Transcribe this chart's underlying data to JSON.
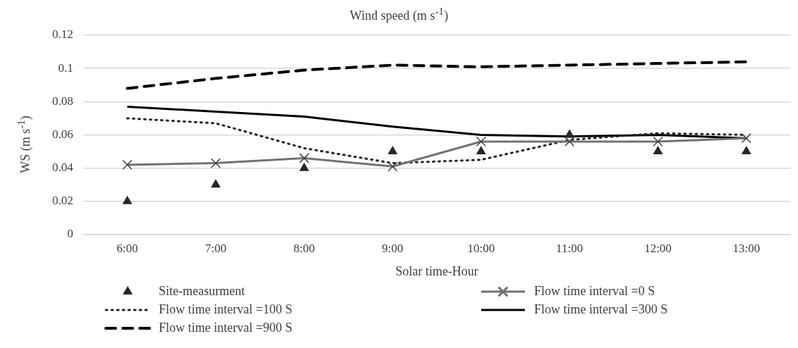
{
  "chart_data": {
    "type": "line",
    "title": "Wind speed (m s$^{-1}$)",
    "xlabel": "Solar time-Hour",
    "ylabel": "WS (m s$^{-1}$)",
    "categories": [
      "6:00",
      "7:00",
      "8:00",
      "9:00",
      "10:00",
      "11:00",
      "12:00",
      "13:00"
    ],
    "ylim": [
      0,
      0.12
    ],
    "yticks": [
      0,
      0.02,
      0.04,
      0.06,
      0.08,
      {
        "value": 0.1,
        "label": "0.1"
      },
      0.12
    ],
    "grid": "y",
    "legend": "bottom",
    "series": [
      {
        "name": "Site-measurment",
        "type": "scatter",
        "marker": "triangle",
        "color": "#262626",
        "values": [
          0.02,
          0.03,
          0.04,
          0.05,
          0.05,
          0.06,
          0.05,
          0.05
        ]
      },
      {
        "name": "Flow time interval =0 S",
        "type": "line",
        "marker": "cross",
        "line_style": "solid",
        "color": "#767171",
        "values": [
          0.042,
          0.043,
          0.046,
          0.041,
          0.056,
          0.056,
          0.056,
          0.058
        ]
      },
      {
        "name": "Flow time interval =100 S",
        "type": "line",
        "marker": "none",
        "line_style": "dotted",
        "color": "#262626",
        "values": [
          0.07,
          0.067,
          0.052,
          0.043,
          0.045,
          0.057,
          0.061,
          0.06
        ]
      },
      {
        "name": "Flow time interval =300 S",
        "type": "line",
        "marker": "none",
        "line_style": "solid",
        "color": "#000000",
        "values": [
          0.077,
          0.074,
          0.071,
          0.065,
          0.06,
          0.059,
          0.06,
          0.058
        ]
      },
      {
        "name": "Flow time interval =900 S",
        "type": "line",
        "marker": "none",
        "line_style": "dashed",
        "color": "#000000",
        "values": [
          0.088,
          0.094,
          0.099,
          0.102,
          0.101,
          0.102,
          0.103,
          0.104
        ]
      }
    ]
  }
}
